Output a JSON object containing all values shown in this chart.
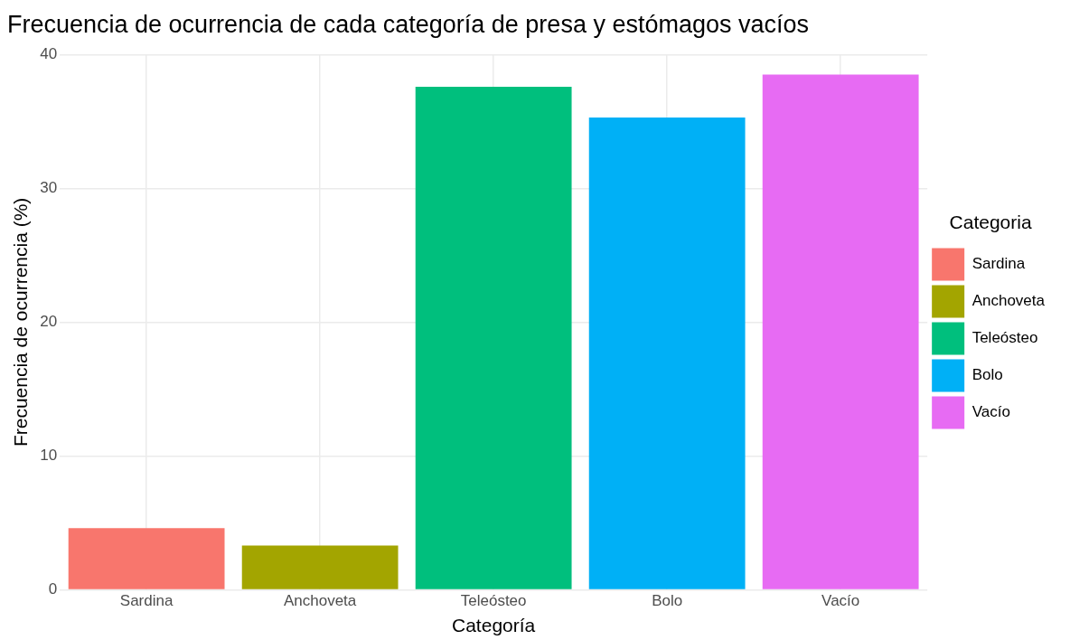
{
  "chart_data": {
    "type": "bar",
    "title": "Frecuencia de ocurrencia de cada categoría de presa y estómagos vacíos",
    "xlabel": "Categoría",
    "ylabel": "Frecuencia de ocurrencia (%)",
    "legend_title": "Categoria",
    "categories": [
      "Sardina",
      "Anchoveta",
      "Teleósteo",
      "Bolo",
      "Vacío"
    ],
    "series": [
      {
        "name": "Sardina",
        "color": "#f8766d",
        "values": [
          4.6,
          null,
          null,
          null,
          null
        ]
      },
      {
        "name": "Anchoveta",
        "color": "#a3a500",
        "values": [
          null,
          3.3,
          null,
          null,
          null
        ]
      },
      {
        "name": "Teleósteo",
        "color": "#00bf7d",
        "values": [
          null,
          null,
          37.6,
          null,
          null
        ]
      },
      {
        "name": "Bolo",
        "color": "#00b0f6",
        "values": [
          null,
          null,
          null,
          35.3,
          null
        ]
      },
      {
        "name": "Vacío",
        "color": "#e76bf3",
        "values": [
          null,
          null,
          null,
          null,
          38.5
        ]
      }
    ],
    "ylim": [
      0,
      40
    ],
    "yticks": [
      0,
      10,
      20,
      30,
      40
    ],
    "grid": true,
    "legend": "right"
  }
}
